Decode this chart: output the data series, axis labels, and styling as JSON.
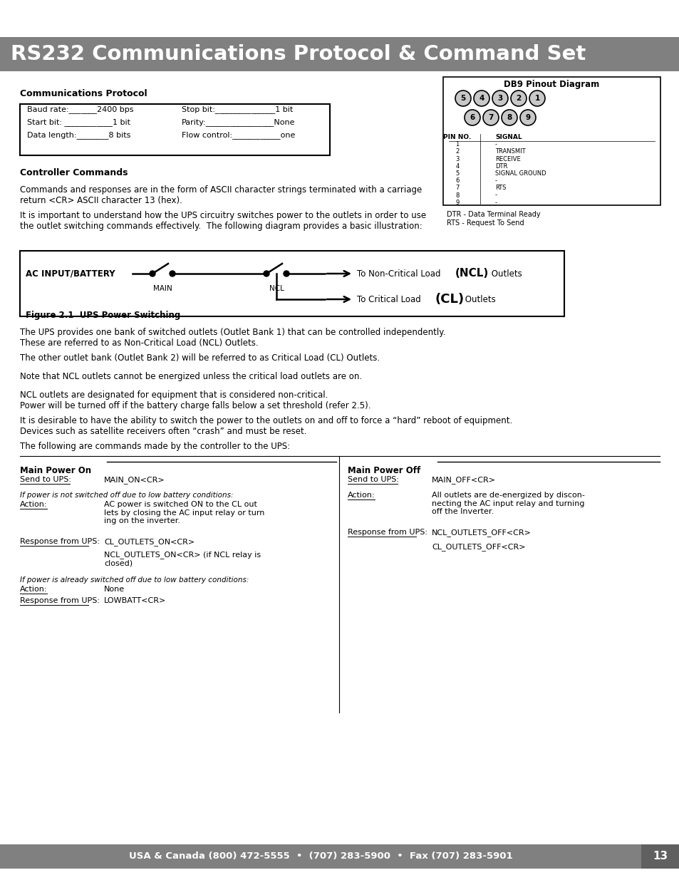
{
  "title": "RS232 Communications Protocol & Command Set",
  "title_bg": "#808080",
  "title_color": "#ffffff",
  "footer_text": "USA & Canada (800) 472-5555  •  (707) 283-5900  •  Fax (707) 283-5901",
  "footer_page": "13",
  "footer_bg": "#808080",
  "footer_color": "#ffffff",
  "bg_color": "#ffffff",
  "comm_protocol_label": "Communications Protocol",
  "controller_commands_label": "Controller Commands",
  "text1": "Commands and responses are in the form of ASCII character strings terminated with a carriage\nreturn <CR> ASCII character 13 (hex).",
  "text2": "It is important to understand how the UPS circuitry switches power to the outlets in order to use\nthe outlet switching commands effectively.  The following diagram provides a basic illustration:",
  "figure_caption": "Figure 2.1  UPS Power Switching",
  "text3": "The UPS provides one bank of switched outlets (Outlet Bank 1) that can be controlled independently.\nThese are referred to as Non-Critical Load (NCL) Outlets.",
  "text4": "The other outlet bank (Outlet Bank 2) will be referred to as Critical Load (CL) Outlets.",
  "text5": "Note that NCL outlets cannot be energized unless the critical load outlets are on.",
  "text6": "NCL outlets are designated for equipment that is considered non-critical.\nPower will be turned off if the battery charge falls below a set threshold (refer 2.5).",
  "text7": "It is desirable to have the ability to switch the power to the outlets on and off to force a “hard” reboot of equipment.\nDevices such as satellite receivers often “crash” and must be reset.",
  "text8": "The following are commands made by the controller to the UPS:",
  "main_power_on_label": "Main Power On",
  "main_power_off_label": "Main Power Off",
  "send_ups_label": "Send to UPS:",
  "main_on_cmd": "MAIN_ON<CR>",
  "main_off_cmd": "MAIN_OFF<CR>",
  "if_not_switched_label": "If power is not switched off due to low battery conditions:",
  "action_label": "Action:",
  "action_on_text": "AC power is switched ON to the CL out\nlets by closing the AC input relay or turn\ning on the inverter.",
  "response_ups_label": "Response from UPS:",
  "cl_outlets_on": "CL_OUTLETS_ON<CR>",
  "ncl_outlets_on": "NCL_OUTLETS_ON<CR> (if NCL relay is\nclosed)",
  "if_already_off_label": "If power is already switched off due to low battery conditions:",
  "action_none_label": "Action:",
  "action_none_text": "None",
  "response_lowbatt": "LOWBATT<CR>",
  "action_off_label": "Action:",
  "action_off_text": "All outlets are de-energized by discon-\nnecting the AC input relay and turning\noff the Inverter.",
  "response_off_ups_label": "Response from UPS:",
  "ncl_outlets_off": "NCL_OUTLETS_OFF<CR>",
  "cl_outlets_off": "CL_OUTLETS_OFF<CR>",
  "db9_title": "DB9 Pinout Diagram",
  "db9_pins_top": [
    "5",
    "4",
    "3",
    "2",
    "1"
  ],
  "db9_pins_bot": [
    "6",
    "7",
    "8",
    "9"
  ],
  "pin_signals": [
    [
      "PIN NO.",
      "SIGNAL"
    ],
    [
      "1",
      "-"
    ],
    [
      "2",
      "TRANSMIT"
    ],
    [
      "3",
      "RECEIVE"
    ],
    [
      "4",
      "DTR"
    ],
    [
      "5",
      "SIGNAL GROUND"
    ],
    [
      "6",
      "-"
    ],
    [
      "7",
      "RTS"
    ],
    [
      "8",
      "-"
    ],
    [
      "9",
      "-"
    ]
  ],
  "db9_note1": "DTR - Data Terminal Ready",
  "db9_note2": "RTS - Request To Send",
  "baud_left": "Baud rate:_______2400 bps",
  "start_left": "Start bit: ____________1 bit",
  "data_left": "Data length:________8 bits",
  "stop_right": "Stop bit:_______________1 bit",
  "parity_right": "Parity:_________________None",
  "flow_right": "Flow control:____________one"
}
